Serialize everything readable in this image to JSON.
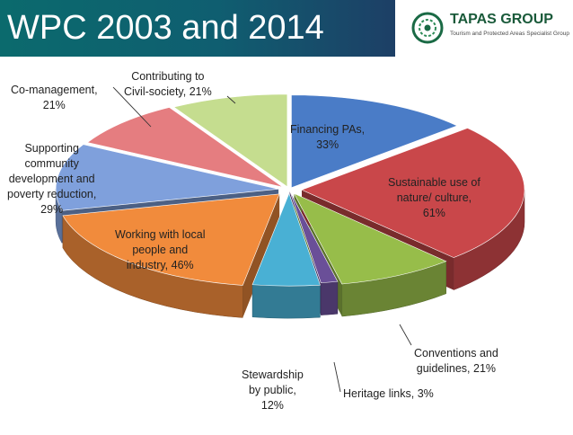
{
  "header": {
    "title": "WPC 2003 and 2014",
    "logo_name": "TAPAS GROUP",
    "logo_tagline": "Tourism and Protected Areas Specialist Group",
    "band_color": "#0f5e70"
  },
  "chart_data": {
    "type": "pie",
    "title": "WPC 2003 and 2014",
    "style": "3d-exploded",
    "slices": [
      {
        "label": "Financing PAs,",
        "value": 33,
        "display": "33%",
        "color": "#4a7cc7"
      },
      {
        "label": "Sustainable use of nature/ culture,",
        "value": 61,
        "display": "61%",
        "color": "#c9474a"
      },
      {
        "label": "Conventions and guidelines,",
        "value": 21,
        "display": "21%",
        "color": "#97bd4a"
      },
      {
        "label": "Heritage links,",
        "value": 3,
        "display": "3%",
        "color": "#6a4f98"
      },
      {
        "label": "Stewardship by public,",
        "value": 12,
        "display": "12%",
        "color": "#49b0d4"
      },
      {
        "label": "Working with local people and industry,",
        "value": 46,
        "display": "46%",
        "color": "#f18b3c"
      },
      {
        "label": "Supporting community development and poverty reduction,",
        "value": 29,
        "display": "29%",
        "color": "#7fa0dc"
      },
      {
        "label": "Co-management,",
        "value": 21,
        "display": "21%",
        "color": "#e57d80"
      },
      {
        "label": "Contributing to Civil-society,",
        "value": 21,
        "display": "21%",
        "color": "#c5dd8f"
      }
    ]
  }
}
